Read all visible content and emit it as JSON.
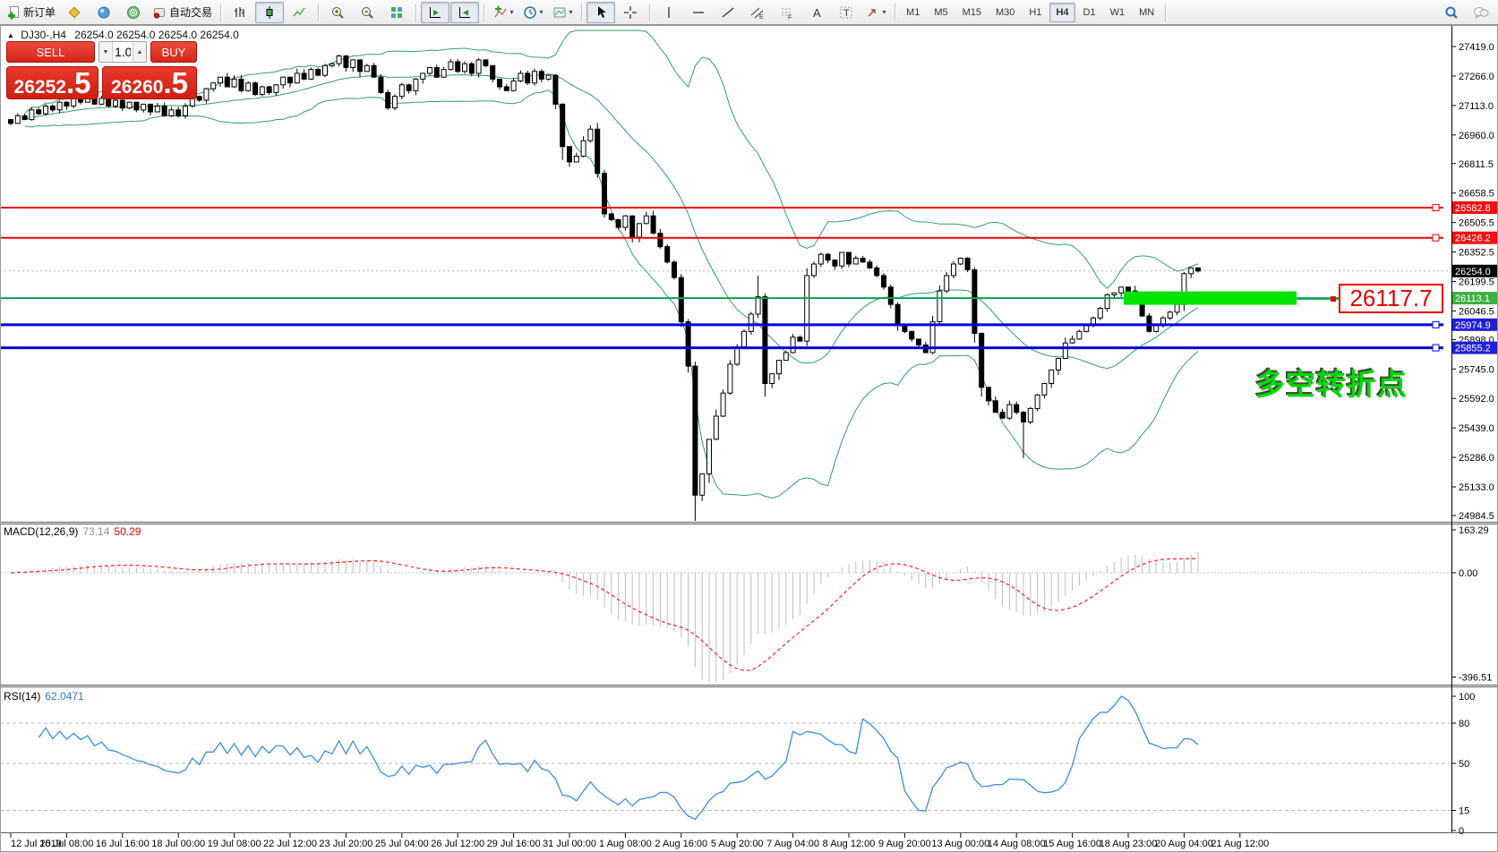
{
  "toolbar": {
    "new_order_label": "新订单",
    "autotrading_label": "自动交易",
    "timeframes": [
      "M1",
      "M5",
      "M15",
      "M30",
      "H1",
      "H4",
      "D1",
      "W1",
      "MN"
    ],
    "active_timeframe": "H4"
  },
  "trade_panel": {
    "sell_label": "SELL",
    "buy_label": "BUY",
    "volume": "1.00",
    "sell_price_main": "26252",
    "sell_price_frac": ".5",
    "buy_price_main": "26260",
    "buy_price_frac": ".5"
  },
  "chart_header": {
    "symbol_period": "DJ30-,H4",
    "ohlc": "26254.0 26254.0 26254.0 26254.0"
  },
  "annotations": {
    "price_callout": "26117.7",
    "turning_point_text": "多空转折点"
  },
  "indicators": {
    "macd_label": "MACD(12,26,9)",
    "macd_main_value": "73.14",
    "macd_signal_value": "50.29",
    "macd_axis": [
      "163.29",
      "0.00",
      "-396.51"
    ],
    "rsi_label": "RSI(14)",
    "rsi_value": "62.0471",
    "rsi_axis": [
      "100",
      "80",
      "50",
      "15",
      "0"
    ],
    "rsi_levels": [
      80,
      50,
      15
    ]
  },
  "price_axis": {
    "ticks": [
      "27419.0",
      "27266.0",
      "27113.0",
      "26960.0",
      "26811.5",
      "26658.5",
      "26505.5",
      "26352.5",
      "26199.5",
      "26046.5",
      "25898.0",
      "25745.0",
      "25592.0",
      "25439.0",
      "25286.0",
      "25133.0",
      "24984.5"
    ],
    "line_labels": [
      {
        "text": "26582.8",
        "bg": "#ee1111"
      },
      {
        "text": "26426.2",
        "bg": "#ee1111"
      },
      {
        "text": "26113.1",
        "bg": "#3cb043"
      },
      {
        "text": "25974.9",
        "bg": "#2020d6"
      },
      {
        "text": "25855.2",
        "bg": "#2020d6"
      }
    ],
    "current_label": {
      "text": "26254.0",
      "bg": "#000000"
    }
  },
  "time_axis": {
    "labels": [
      "12 Jul 2019",
      "15 Jul 08:00",
      "16 Jul 16:00",
      "18 Jul 00:00",
      "19 Jul 08:00",
      "22 Jul 12:00",
      "23 Jul 20:00",
      "25 Jul 04:00",
      "26 Jul 12:00",
      "29 Jul 16:00",
      "31 Jul 00:00",
      "1 Aug 08:00",
      "2 Aug 16:00",
      "5 Aug 20:00",
      "7 Aug 04:00",
      "8 Aug 12:00",
      "9 Aug 20:00",
      "13 Aug 00:00",
      "14 Aug 08:00",
      "15 Aug 16:00",
      "18 Aug 23:00",
      "20 Aug 04:00",
      "21 Aug 12:00"
    ]
  },
  "chart_data": {
    "type": "candlestick",
    "symbol": "DJ30-",
    "period": "H4",
    "title": "DJ30-,H4 26254.0 26254.0 26254.0 26254.0",
    "closes": [
      27020,
      27060,
      27040,
      27090,
      27070,
      27110,
      27090,
      27130,
      27110,
      27150,
      27130,
      27160,
      27120,
      27150,
      27110,
      27140,
      27100,
      27130,
      27090,
      27120,
      27080,
      27110,
      27060,
      27090,
      27060,
      27110,
      27160,
      27140,
      27200,
      27230,
      27260,
      27210,
      27250,
      27190,
      27230,
      27170,
      27210,
      27180,
      27220,
      27260,
      27230,
      27280,
      27250,
      27300,
      27270,
      27320,
      27330,
      27370,
      27310,
      27350,
      27290,
      27320,
      27260,
      27180,
      27100,
      27160,
      27220,
      27190,
      27250,
      27280,
      27310,
      27260,
      27300,
      27340,
      27290,
      27330,
      27280,
      27350,
      27320,
      27250,
      27210,
      27190,
      27240,
      27280,
      27230,
      27290,
      27250,
      27270,
      27120,
      26900,
      26820,
      26850,
      26930,
      26990,
      26760,
      26550,
      26520,
      26480,
      26540,
      26430,
      26500,
      26540,
      26450,
      26380,
      26300,
      26220,
      25990,
      25760,
      25090,
      25200,
      25380,
      25500,
      25620,
      25770,
      25860,
      25940,
      26030,
      26120,
      25670,
      25720,
      25790,
      25830,
      25910,
      25890,
      26230,
      26290,
      26340,
      26310,
      26280,
      26350,
      26290,
      26320,
      26300,
      26270,
      26230,
      26170,
      26080,
      25970,
      25940,
      25900,
      25870,
      25830,
      25990,
      26150,
      26230,
      26290,
      26320,
      26260,
      25930,
      25650,
      25580,
      25520,
      25490,
      25560,
      25520,
      25470,
      25540,
      25610,
      25670,
      25740,
      25800,
      25880,
      25900,
      25940,
      25970,
      26010,
      26060,
      26130,
      26140,
      26170,
      26150,
      26100,
      26020,
      25940,
      25970,
      26010,
      26040,
      26080,
      26240,
      26270,
      26254
    ],
    "wick_overrides": {
      "79": [
        0,
        30
      ],
      "98": [
        0,
        50
      ],
      "107": [
        100,
        0
      ],
      "145": [
        0,
        180
      ]
    },
    "hlines": [
      {
        "price": 26582.8,
        "color": "#ee0000",
        "width": 2,
        "name": "resistance-line-26582.8",
        "square": true
      },
      {
        "price": 26426.2,
        "color": "#ee0000",
        "width": 2,
        "name": "resistance-line-26426.2",
        "square": true
      },
      {
        "price": 26113.1,
        "color": "#00a651",
        "width": 2,
        "name": "pivot-line-26113.1",
        "square": false
      },
      {
        "price": 25974.9,
        "color": "#0000dd",
        "width": 3,
        "name": "support-line-25974.9",
        "square": true
      },
      {
        "price": 25855.2,
        "color": "#0000dd",
        "width": 3,
        "name": "support-line-25855.2",
        "square": true
      }
    ],
    "current_price": 26254.0,
    "highlight_zone": {
      "price": 26113.1,
      "color": "#00e400"
    },
    "bollinger": {
      "period": 20,
      "deviation": 2,
      "color": "#2f9e6e"
    },
    "macd": {
      "fast": 12,
      "slow": 26,
      "signal": 9,
      "hist_color": "#bdbdbd",
      "signal_color": "#ff2020"
    },
    "rsi": {
      "period": 14,
      "color": "#3b8de0"
    },
    "ylim": [
      24984.5,
      27419.0
    ],
    "macd_ylim": [
      -396.51,
      163.29
    ],
    "rsi_ylim": [
      0,
      100
    ]
  }
}
